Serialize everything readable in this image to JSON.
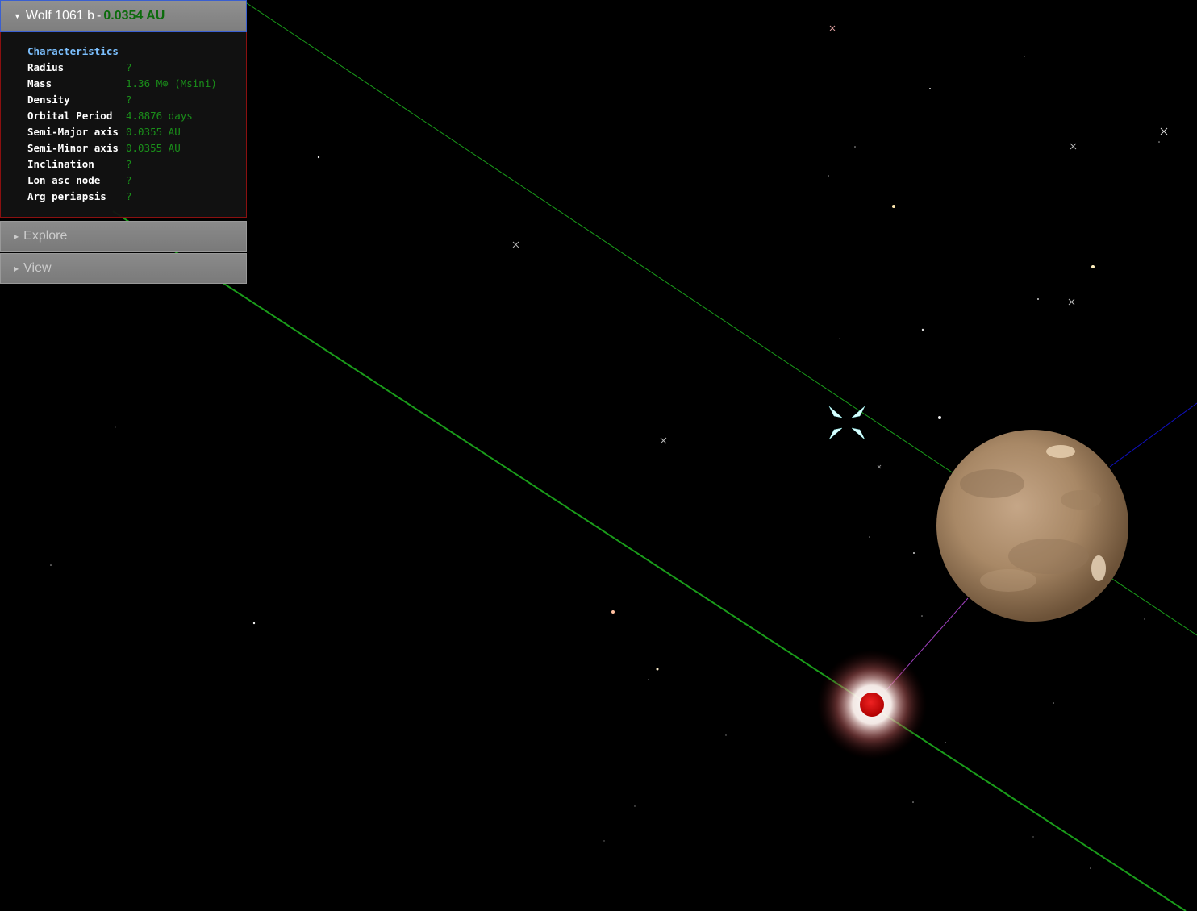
{
  "planet_panel": {
    "name": "Wolf 1061 b",
    "separator": "-",
    "distance": "0.0354 AU",
    "section_title": "Characteristics",
    "rows": [
      {
        "label": "Radius",
        "value": "?"
      },
      {
        "label": "Mass",
        "value": "1.36 M⊕ (Msini)"
      },
      {
        "label": "Density",
        "value": "?"
      },
      {
        "label": "Orbital Period",
        "value": "4.8876 days"
      },
      {
        "label": "Semi-Major axis",
        "value": "0.0355 AU"
      },
      {
        "label": "Semi-Minor axis",
        "value": "0.0355 AU"
      },
      {
        "label": "Inclination",
        "value": "?"
      },
      {
        "label": "Lon asc node",
        "value": "?"
      },
      {
        "label": "Arg periapsis",
        "value": "?"
      }
    ]
  },
  "explore_panel": {
    "label": "Explore"
  },
  "view_panel": {
    "label": "View"
  },
  "colors": {
    "background": "#000000",
    "orbit_line": "#1a9c1a",
    "planet": "#b09070",
    "star": "#cc0000",
    "axis_blue": "#1010c0",
    "axis_purple": "#a040c0",
    "value_green": "#1a8f1a",
    "section_blue": "#7cc0ff"
  }
}
